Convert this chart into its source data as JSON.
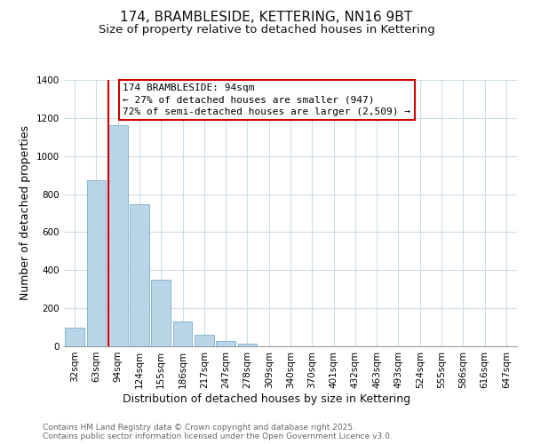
{
  "title": "174, BRAMBLESIDE, KETTERING, NN16 9BT",
  "subtitle": "Size of property relative to detached houses in Kettering",
  "xlabel": "Distribution of detached houses by size in Kettering",
  "ylabel": "Number of detached properties",
  "categories": [
    "32sqm",
    "63sqm",
    "94sqm",
    "124sqm",
    "155sqm",
    "186sqm",
    "217sqm",
    "247sqm",
    "278sqm",
    "309sqm",
    "340sqm",
    "370sqm",
    "401sqm",
    "432sqm",
    "463sqm",
    "493sqm",
    "524sqm",
    "555sqm",
    "586sqm",
    "616sqm",
    "647sqm"
  ],
  "values": [
    100,
    875,
    1160,
    745,
    350,
    133,
    60,
    30,
    15,
    0,
    0,
    0,
    0,
    0,
    0,
    0,
    0,
    0,
    0,
    0,
    0
  ],
  "bar_color": "#bad4e8",
  "bar_edge_color": "#7aaed0",
  "vertical_line_x": 2.0,
  "vertical_line_color": "#cc0000",
  "ylim": [
    0,
    1400
  ],
  "yticks": [
    0,
    200,
    400,
    600,
    800,
    1000,
    1200,
    1400
  ],
  "annotation_line1": "174 BRAMBLESIDE: 94sqm",
  "annotation_line2": "← 27% of detached houses are smaller (947)",
  "annotation_line3": "72% of semi-detached houses are larger (2,509) →",
  "footer_line1": "Contains HM Land Registry data © Crown copyright and database right 2025.",
  "footer_line2": "Contains public sector information licensed under the Open Government Licence v3.0.",
  "background_color": "#ffffff",
  "grid_color": "#ccdde8",
  "title_fontsize": 11,
  "subtitle_fontsize": 9.5,
  "axis_label_fontsize": 9,
  "tick_fontsize": 7.5,
  "annotation_fontsize": 8,
  "footer_fontsize": 6.5
}
